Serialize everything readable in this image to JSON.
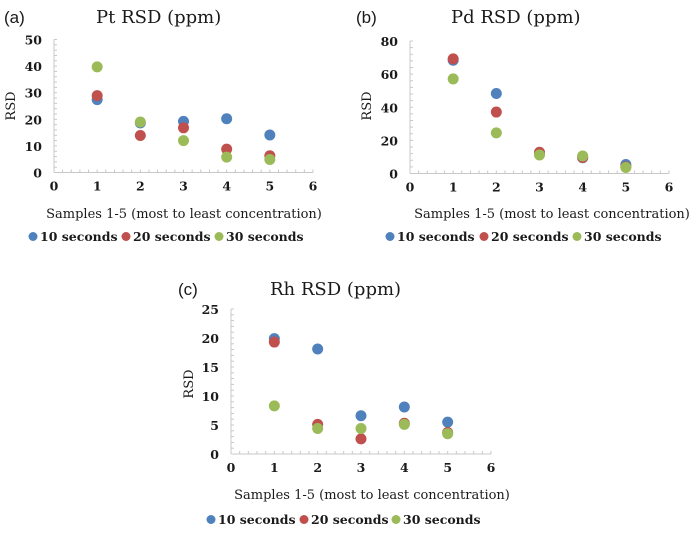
{
  "chart_data": [
    {
      "type": "scatter",
      "panel_label": "(a)",
      "title": "Pt RSD (ppm)",
      "xlabel": "Samples 1-5 (most to least concentration)",
      "ylabel": "RSD",
      "xlim": [
        0,
        6
      ],
      "ylim": [
        0,
        50
      ],
      "xticks": [
        0,
        1,
        2,
        3,
        4,
        5,
        6
      ],
      "yticks": [
        0,
        10,
        20,
        30,
        40,
        50
      ],
      "grid": false,
      "legend_position": "bottom",
      "x": [
        1,
        2,
        3,
        4,
        5
      ],
      "series": [
        {
          "name": "10 seconds",
          "color": "#4F81BD",
          "values": [
            27.4,
            18.6,
            19.2,
            20.2,
            14.1
          ]
        },
        {
          "name": "20 seconds",
          "color": "#C0504D",
          "values": [
            28.9,
            13.9,
            16.8,
            8.8,
            6.3
          ]
        },
        {
          "name": "30 seconds",
          "color": "#9BBB59",
          "values": [
            39.7,
            19.0,
            12.0,
            5.8,
            4.9
          ]
        }
      ]
    },
    {
      "type": "scatter",
      "panel_label": "(b)",
      "title": "Pd RSD (ppm)",
      "xlabel": "Samples 1-5 (most to least concentration)",
      "ylabel": "RSD",
      "xlim": [
        0,
        6
      ],
      "ylim": [
        0,
        80
      ],
      "xticks": [
        0,
        1,
        2,
        3,
        4,
        5,
        6
      ],
      "yticks": [
        0,
        20,
        40,
        60,
        80
      ],
      "grid": false,
      "legend_position": "bottom",
      "x": [
        1,
        2,
        3,
        4,
        5
      ],
      "series": [
        {
          "name": "10 seconds",
          "color": "#4F81BD",
          "values": [
            68.4,
            48.3,
            12.0,
            9.5,
            5.4
          ]
        },
        {
          "name": "20 seconds",
          "color": "#C0504D",
          "values": [
            69.2,
            37.1,
            12.8,
            9.7,
            4.0
          ]
        },
        {
          "name": "30 seconds",
          "color": "#9BBB59",
          "values": [
            57.1,
            24.5,
            11.2,
            10.6,
            3.6
          ]
        }
      ]
    },
    {
      "type": "scatter",
      "panel_label": "(c)",
      "title": "Rh RSD (ppm)",
      "xlabel": "Samples 1-5 (most to least concentration)",
      "ylabel": "RSD",
      "xlim": [
        0,
        6
      ],
      "ylim": [
        0,
        25
      ],
      "xticks": [
        0,
        1,
        2,
        3,
        4,
        5,
        6
      ],
      "yticks": [
        0,
        5,
        10,
        15,
        20,
        25
      ],
      "grid": false,
      "legend_position": "bottom",
      "x": [
        1,
        2,
        3,
        4,
        5
      ],
      "series": [
        {
          "name": "10 seconds",
          "color": "#4F81BD",
          "values": [
            19.9,
            18.1,
            6.6,
            8.1,
            5.5
          ]
        },
        {
          "name": "20 seconds",
          "color": "#C0504D",
          "values": [
            19.3,
            5.1,
            2.6,
            5.3,
            3.7
          ]
        },
        {
          "name": "30 seconds",
          "color": "#9BBB59",
          "values": [
            8.3,
            4.4,
            4.4,
            5.1,
            3.5
          ]
        }
      ]
    }
  ]
}
